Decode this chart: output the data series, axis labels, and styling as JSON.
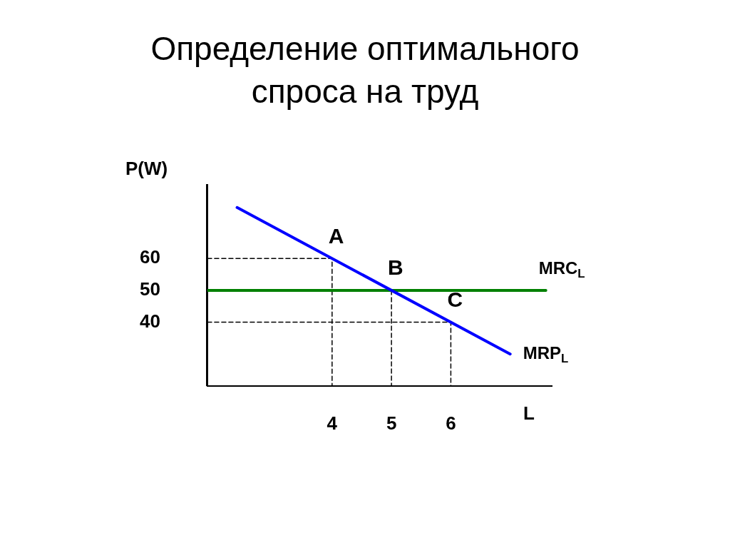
{
  "chart_data": {
    "type": "line",
    "title": "Определение оптимального спроса на труд",
    "xlabel": "L",
    "ylabel": "P(W)",
    "xlim": [
      1.9,
      7.7
    ],
    "ylim": [
      20,
      83
    ],
    "xticks": [
      4,
      5,
      6
    ],
    "yticks": [
      40,
      50,
      60
    ],
    "grid": false,
    "legend": false,
    "marker": "none",
    "series": [
      {
        "name": "MRP$_{L}$",
        "color": "#0000ff",
        "x": [
          2.4,
          7
        ],
        "values": [
          76,
          30
        ]
      },
      {
        "name": "MRC$_{L}$",
        "color": "#008000",
        "x": [
          1.9,
          7.6
        ],
        "values": [
          50,
          50
        ]
      },
      {
        "color": "#000000",
        "line_style": "dashed",
        "x": [
          1.9,
          4,
          4
        ],
        "values": [
          60,
          60,
          20
        ]
      },
      {
        "color": "#000000",
        "line_style": "dashed",
        "x": [
          5,
          5
        ],
        "values": [
          50,
          20
        ]
      },
      {
        "color": "#000000",
        "line_style": "dashed",
        "x": [
          1.9,
          6,
          6
        ],
        "values": [
          40,
          40,
          20
        ]
      }
    ],
    "annotations": [
      {
        "text": "A",
        "x": 4,
        "y": 60
      },
      {
        "text": "B",
        "x": 5,
        "y": 50
      },
      {
        "text": "C",
        "x": 6,
        "y": 40
      }
    ]
  }
}
